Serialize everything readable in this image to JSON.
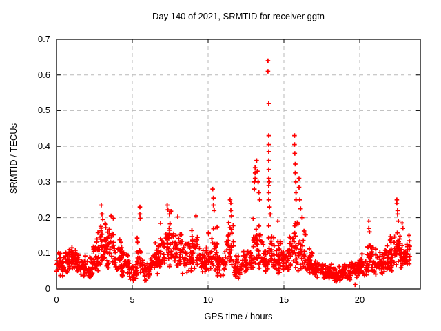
{
  "chart_data": {
    "type": "scatter",
    "title": "Day 140 of 2021, SRMTID for receiver ggtn",
    "xlabel": "GPS time / hours",
    "ylabel": "SRMTID / TECUs",
    "xlim": [
      0,
      24
    ],
    "ylim": [
      0,
      0.7
    ],
    "xticks": [
      0,
      5,
      10,
      15,
      20
    ],
    "xtick_labels": [
      "0",
      "5",
      "10",
      "15",
      "20"
    ],
    "yticks": [
      0,
      0.1,
      0.2,
      0.3,
      0.4,
      0.5,
      0.6,
      0.7
    ],
    "ytick_labels": [
      "0",
      "0.1",
      "0.2",
      "0.3",
      "0.4",
      "0.5",
      "0.6",
      "0.7"
    ],
    "grid": true,
    "legend": "none",
    "marker_shape": "plus",
    "marker_color": "#ff0000",
    "grid_color": "#b9b9b9",
    "axis_color": "#000000",
    "background_color": "#ffffff",
    "band_segments": [
      [
        0.0,
        0.5,
        0.035,
        0.115,
        35
      ],
      [
        0.5,
        1.0,
        0.04,
        0.125,
        35
      ],
      [
        1.0,
        1.5,
        0.045,
        0.135,
        35
      ],
      [
        1.5,
        2.0,
        0.03,
        0.105,
        32
      ],
      [
        2.0,
        2.4,
        0.025,
        0.095,
        25
      ],
      [
        2.4,
        2.8,
        0.04,
        0.16,
        28
      ],
      [
        2.8,
        3.3,
        0.05,
        0.2,
        36
      ],
      [
        3.3,
        3.8,
        0.05,
        0.185,
        34
      ],
      [
        3.8,
        4.3,
        0.045,
        0.165,
        30
      ],
      [
        4.3,
        4.8,
        0.03,
        0.12,
        30
      ],
      [
        4.8,
        5.3,
        0.02,
        0.075,
        26
      ],
      [
        5.3,
        5.7,
        0.03,
        0.155,
        24
      ],
      [
        5.7,
        6.2,
        0.02,
        0.085,
        28
      ],
      [
        6.2,
        6.7,
        0.04,
        0.14,
        30
      ],
      [
        6.7,
        7.2,
        0.05,
        0.185,
        32
      ],
      [
        7.2,
        7.8,
        0.055,
        0.21,
        38
      ],
      [
        7.8,
        8.3,
        0.05,
        0.17,
        32
      ],
      [
        8.3,
        8.9,
        0.04,
        0.145,
        34
      ],
      [
        8.9,
        9.4,
        0.045,
        0.175,
        30
      ],
      [
        9.4,
        10.0,
        0.035,
        0.125,
        34
      ],
      [
        10.0,
        10.6,
        0.045,
        0.185,
        34
      ],
      [
        10.6,
        11.2,
        0.03,
        0.125,
        34
      ],
      [
        11.2,
        11.7,
        0.045,
        0.19,
        28
      ],
      [
        11.7,
        12.3,
        0.025,
        0.105,
        32
      ],
      [
        12.3,
        12.9,
        0.035,
        0.13,
        32
      ],
      [
        12.9,
        13.5,
        0.05,
        0.22,
        36
      ],
      [
        13.5,
        13.9,
        0.045,
        0.15,
        24
      ],
      [
        13.9,
        14.2,
        0.05,
        0.2,
        20
      ],
      [
        14.2,
        14.8,
        0.04,
        0.145,
        34
      ],
      [
        14.8,
        15.3,
        0.045,
        0.135,
        30
      ],
      [
        15.3,
        15.7,
        0.05,
        0.18,
        24
      ],
      [
        15.7,
        16.0,
        0.05,
        0.21,
        18
      ],
      [
        16.0,
        16.5,
        0.045,
        0.185,
        28
      ],
      [
        16.5,
        17.0,
        0.035,
        0.115,
        30
      ],
      [
        17.0,
        17.6,
        0.03,
        0.085,
        34
      ],
      [
        17.6,
        18.2,
        0.025,
        0.075,
        34
      ],
      [
        18.2,
        18.8,
        0.02,
        0.065,
        34
      ],
      [
        18.8,
        19.4,
        0.025,
        0.07,
        34
      ],
      [
        19.4,
        20.0,
        0.03,
        0.085,
        34
      ],
      [
        20.0,
        20.5,
        0.035,
        0.11,
        30
      ],
      [
        20.5,
        20.9,
        0.04,
        0.145,
        26
      ],
      [
        20.9,
        21.5,
        0.04,
        0.115,
        34
      ],
      [
        21.5,
        22.0,
        0.045,
        0.125,
        32
      ],
      [
        22.0,
        22.4,
        0.05,
        0.155,
        26
      ],
      [
        22.4,
        22.7,
        0.05,
        0.175,
        20
      ],
      [
        22.7,
        23.0,
        0.045,
        0.14,
        20
      ],
      [
        23.0,
        23.3,
        0.06,
        0.155,
        18
      ]
    ],
    "spike_points": [
      [
        2.95,
        0.235
      ],
      [
        3.0,
        0.21
      ],
      [
        3.05,
        0.195
      ],
      [
        3.6,
        0.205
      ],
      [
        3.75,
        0.198
      ],
      [
        5.5,
        0.23
      ],
      [
        5.5,
        0.21
      ],
      [
        5.52,
        0.198
      ],
      [
        7.3,
        0.235
      ],
      [
        7.35,
        0.222
      ],
      [
        7.45,
        0.21
      ],
      [
        7.55,
        0.218
      ],
      [
        8.0,
        0.202
      ],
      [
        9.2,
        0.205
      ],
      [
        10.3,
        0.28
      ],
      [
        10.35,
        0.255
      ],
      [
        10.35,
        0.235
      ],
      [
        10.4,
        0.22
      ],
      [
        11.45,
        0.25
      ],
      [
        11.5,
        0.24
      ],
      [
        11.5,
        0.22
      ],
      [
        11.55,
        0.205
      ],
      [
        13.05,
        0.3
      ],
      [
        13.05,
        0.28
      ],
      [
        13.1,
        0.34
      ],
      [
        13.1,
        0.325
      ],
      [
        13.1,
        0.31
      ],
      [
        13.2,
        0.36
      ],
      [
        13.25,
        0.33
      ],
      [
        13.3,
        0.3
      ],
      [
        13.35,
        0.27
      ],
      [
        13.4,
        0.25
      ],
      [
        13.95,
        0.64
      ],
      [
        13.95,
        0.61
      ],
      [
        14.0,
        0.52
      ],
      [
        14.0,
        0.43
      ],
      [
        14.0,
        0.405
      ],
      [
        14.0,
        0.385
      ],
      [
        14.0,
        0.36
      ],
      [
        14.0,
        0.335
      ],
      [
        14.0,
        0.31
      ],
      [
        14.0,
        0.29
      ],
      [
        14.0,
        0.27
      ],
      [
        14.0,
        0.25
      ],
      [
        14.05,
        0.3
      ],
      [
        14.05,
        0.23
      ],
      [
        14.1,
        0.21
      ],
      [
        14.6,
        0.19
      ],
      [
        15.7,
        0.43
      ],
      [
        15.7,
        0.405
      ],
      [
        15.72,
        0.38
      ],
      [
        15.75,
        0.35
      ],
      [
        15.75,
        0.325
      ],
      [
        15.78,
        0.3
      ],
      [
        15.8,
        0.27
      ],
      [
        15.8,
        0.25
      ],
      [
        16.0,
        0.31
      ],
      [
        16.0,
        0.285
      ],
      [
        16.05,
        0.25
      ],
      [
        16.1,
        0.225
      ],
      [
        16.2,
        0.2
      ],
      [
        19.7,
        0.012
      ],
      [
        20.6,
        0.19
      ],
      [
        20.6,
        0.17
      ],
      [
        20.65,
        0.16
      ],
      [
        22.45,
        0.25
      ],
      [
        22.45,
        0.24
      ],
      [
        22.5,
        0.22
      ],
      [
        22.5,
        0.21
      ],
      [
        22.55,
        0.19
      ],
      [
        22.8,
        0.185
      ],
      [
        22.85,
        0.17
      ],
      [
        23.25,
        0.15
      ],
      [
        23.28,
        0.135
      ]
    ]
  }
}
